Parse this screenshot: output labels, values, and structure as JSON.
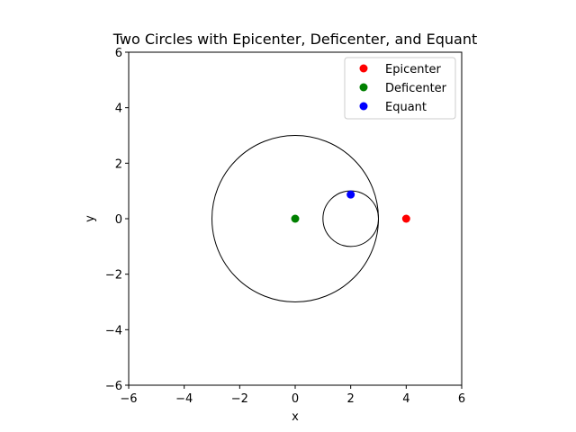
{
  "chart_data": {
    "type": "scatter",
    "title": "Two Circles with Epicenter, Deficenter, and Equant",
    "xlabel": "x",
    "ylabel": "y",
    "xlim": [
      -6,
      6
    ],
    "ylim": [
      -6,
      6
    ],
    "xticks": [
      -6,
      -4,
      -2,
      0,
      2,
      4,
      6
    ],
    "yticks": [
      -6,
      -4,
      -2,
      0,
      2,
      4,
      6
    ],
    "xtick_labels": [
      "−6",
      "−4",
      "−2",
      "0",
      "2",
      "4",
      "6"
    ],
    "ytick_labels": [
      "−6",
      "−4",
      "−2",
      "0",
      "2",
      "4",
      "6"
    ],
    "grid": false,
    "legend_position": "top-right",
    "circles": [
      {
        "cx": 0,
        "cy": 0,
        "r": 3,
        "color": "#000000"
      },
      {
        "cx": 2,
        "cy": 0,
        "r": 1,
        "color": "#000000"
      }
    ],
    "series": [
      {
        "name": "Epicenter",
        "color": "#ff0000",
        "points": [
          [
            4,
            0
          ]
        ]
      },
      {
        "name": "Deficenter",
        "color": "#008000",
        "points": [
          [
            0,
            0
          ]
        ]
      },
      {
        "name": "Equant",
        "color": "#0000ff",
        "points": [
          [
            2,
            0.87
          ]
        ]
      }
    ]
  }
}
